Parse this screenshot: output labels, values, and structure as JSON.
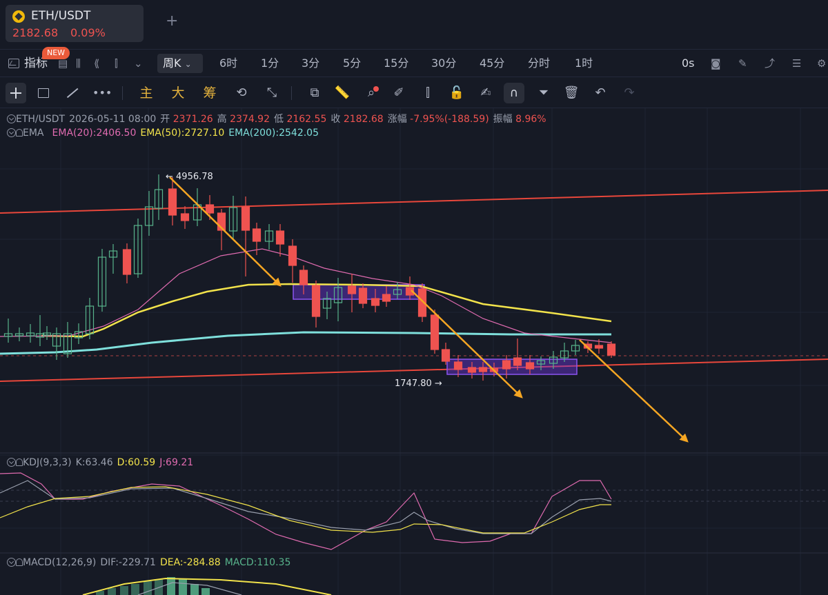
{
  "tab": {
    "symbol": "ETH/USDT",
    "price": "2182.68",
    "change": "0.09%",
    "add_icon": "+"
  },
  "interval_bar": {
    "indicators_label": "指标",
    "new_badge": "NEW",
    "weekly_label": "周K",
    "intervals": [
      "6时",
      "1分",
      "3分",
      "5分",
      "15分",
      "30分",
      "45分",
      "分时",
      "1时"
    ],
    "timer": "0s"
  },
  "draw_bar": {
    "main_label": "主",
    "big_label": "大",
    "chip_label": "筹"
  },
  "ohlc_legend": {
    "symbol": "ETH/USDT",
    "datetime": "2026-05-11 08:00",
    "open_label": "开",
    "open": "2371.26",
    "high_label": "高",
    "high": "2374.92",
    "low_label": "低",
    "low": "2162.55",
    "close_label": "收",
    "close": "2182.68",
    "change_label": "涨幅",
    "change": "-7.95%(-188.59)",
    "amplitude_label": "振幅",
    "amplitude": "8.96%"
  },
  "ema_legend": {
    "name": "EMA",
    "ema20": "EMA(20):2406.50",
    "ema50": "EMA(50):2727.10",
    "ema200": "EMA(200):2542.05",
    "colors": {
      "ema20": "#e06bb0",
      "ema50": "#f2e34b",
      "ema200": "#7fe0dc"
    }
  },
  "annotations": {
    "high_marker": "← 4956.78",
    "low_marker": "1747.80 →"
  },
  "kdj_legend": {
    "name": "KDJ(9,3,3)",
    "k": "K:63.46",
    "d": "D:60.59",
    "j": "J:69.21"
  },
  "macd_legend": {
    "name": "MACD(12,26,9)",
    "dif": "DIF:-229.71",
    "dea": "DEA:-284.88",
    "macd": "MACD:110.35"
  },
  "colors": {
    "up": "#58b48c",
    "down": "#ef5350",
    "trendline": "#e9473b",
    "arrow": "#f5a623",
    "box": "#7b3fe4"
  }
}
